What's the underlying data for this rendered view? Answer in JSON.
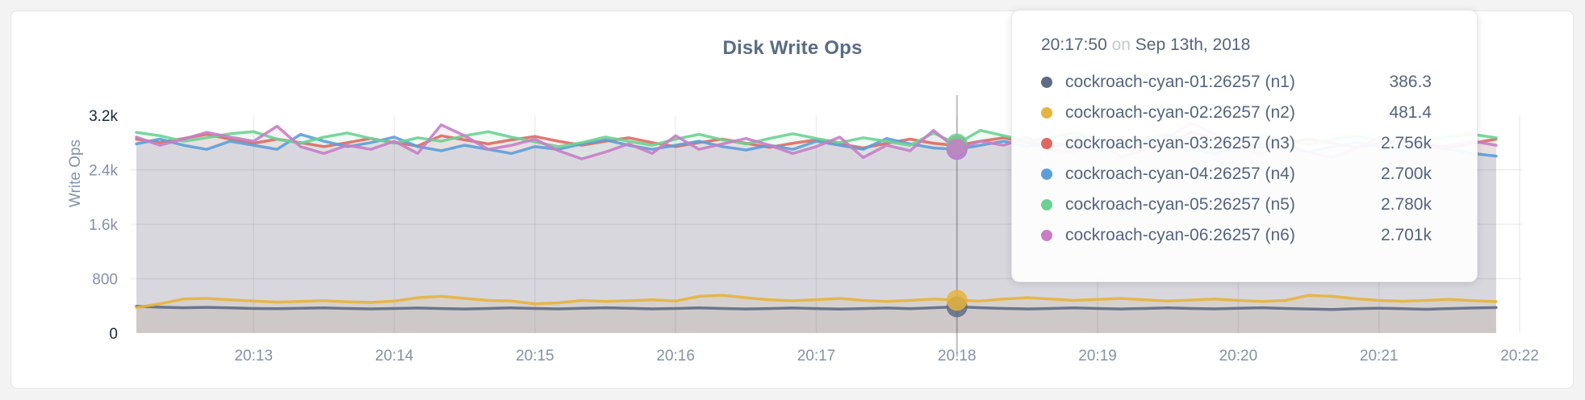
{
  "page": {
    "title": "Disk Write Ops",
    "y_axis_title": "Write Ops"
  },
  "tooltip": {
    "time": "20:17:50",
    "connector": "on",
    "date": "Sep 13th, 2018"
  },
  "chart_data": {
    "type": "line",
    "title": "Disk Write Ops",
    "xlabel": "",
    "ylabel": "Write Ops",
    "ylim": [
      0,
      3200
    ],
    "grid": true,
    "legend_position": "tooltip-overlay",
    "x_start_time": "20:12:10",
    "x_step_seconds": 10,
    "x_domain_seconds": [
      0,
      590
    ],
    "x_ticks": [
      {
        "label": "20:13",
        "t": 50
      },
      {
        "label": "20:14",
        "t": 110
      },
      {
        "label": "20:15",
        "t": 170
      },
      {
        "label": "20:16",
        "t": 230
      },
      {
        "label": "20:17",
        "t": 290
      },
      {
        "label": "20:18",
        "t": 350
      },
      {
        "label": "20:19",
        "t": 410
      },
      {
        "label": "20:20",
        "t": 470
      },
      {
        "label": "20:21",
        "t": 530
      },
      {
        "label": "20:22",
        "t": 590
      }
    ],
    "y_ticks": [
      {
        "label": "0",
        "v": 0,
        "emphasis": true,
        "gridline": false
      },
      {
        "label": "800",
        "v": 800,
        "emphasis": false,
        "gridline": true
      },
      {
        "label": "1.6k",
        "v": 1600,
        "emphasis": false,
        "gridline": true
      },
      {
        "label": "2.4k",
        "v": 2400,
        "emphasis": false,
        "gridline": true
      },
      {
        "label": "3.2k",
        "v": 3200,
        "emphasis": true,
        "gridline": false
      }
    ],
    "hover": {
      "t": 350,
      "index": 35,
      "time": "20:17:50",
      "date": "Sep 13th, 2018"
    },
    "series": [
      {
        "id": "n1",
        "name": "cockroach-cyan-01:26257 (n1)",
        "color": "#5f6c87",
        "fill_opacity": 0.1,
        "hover_value_label": "386.3",
        "values": [
          395,
          380,
          372,
          378,
          370,
          362,
          358,
          364,
          370,
          362,
          356,
          362,
          368,
          360,
          354,
          362,
          370,
          362,
          356,
          364,
          372,
          364,
          356,
          362,
          370,
          362,
          354,
          360,
          368,
          360,
          352,
          360,
          368,
          358,
          372,
          386.3,
          372,
          362,
          354,
          362,
          370,
          362,
          354,
          362,
          370,
          362,
          356,
          364,
          372,
          362,
          354,
          346,
          358,
          366,
          358,
          350,
          360,
          368,
          375
        ]
      },
      {
        "id": "n2",
        "name": "cockroach-cyan-02:26257 (n2)",
        "color": "#e5b43c",
        "fill_opacity": 0.12,
        "hover_value_label": "481.4",
        "values": [
          375,
          430,
          500,
          510,
          490,
          470,
          455,
          465,
          475,
          460,
          450,
          470,
          520,
          540,
          510,
          480,
          470,
          430,
          445,
          480,
          465,
          475,
          490,
          470,
          540,
          555,
          520,
          490,
          475,
          490,
          510,
          480,
          465,
          480,
          500,
          481.4,
          470,
          500,
          520,
          500,
          480,
          495,
          510,
          490,
          470,
          485,
          500,
          480,
          465,
          480,
          555,
          540,
          505,
          480,
          468,
          480,
          495,
          478,
          462
        ]
      },
      {
        "id": "n3",
        "name": "cockroach-cyan-03:26257 (n3)",
        "color": "#dd6a62",
        "fill_opacity": 0.11,
        "hover_value_label": "2.756k",
        "values": [
          2850,
          2800,
          2860,
          2920,
          2850,
          2790,
          2850,
          2800,
          2740,
          2800,
          2860,
          2800,
          2750,
          2900,
          2840,
          2780,
          2840,
          2890,
          2820,
          2760,
          2820,
          2870,
          2800,
          2740,
          2800,
          2850,
          2790,
          2730,
          2790,
          2840,
          2780,
          2720,
          2790,
          2850,
          2790,
          2756,
          2820,
          2870,
          2800,
          2740,
          2800,
          2860,
          2800,
          2740,
          2800,
          2950,
          2860,
          2790,
          2730,
          2790,
          2850,
          2790,
          2730,
          2790,
          2840,
          2780,
          2720,
          2790,
          2850
        ]
      },
      {
        "id": "n4",
        "name": "cockroach-cyan-04:26257 (n4)",
        "color": "#5c9fd8",
        "fill_opacity": 0.11,
        "hover_value_label": "2.700k",
        "values": [
          2780,
          2850,
          2760,
          2700,
          2820,
          2760,
          2700,
          2920,
          2820,
          2740,
          2800,
          2880,
          2740,
          2680,
          2760,
          2700,
          2640,
          2740,
          2700,
          2780,
          2840,
          2760,
          2700,
          2760,
          2820,
          2740,
          2690,
          2760,
          2700,
          2820,
          2760,
          2700,
          2860,
          2780,
          2720,
          2700,
          2760,
          2820,
          2740,
          2800,
          2740,
          2680,
          2760,
          2820,
          2760,
          2700,
          2640,
          2720,
          2780,
          2720,
          2660,
          2740,
          2800,
          2740,
          2680,
          2740,
          2700,
          2640,
          2600
        ]
      },
      {
        "id": "n5",
        "name": "cockroach-cyan-05:26257 (n5)",
        "color": "#6bd193",
        "fill_opacity": 0.11,
        "hover_value_label": "2.780k",
        "values": [
          2950,
          2900,
          2820,
          2870,
          2930,
          2960,
          2850,
          2790,
          2880,
          2940,
          2860,
          2790,
          2870,
          2820,
          2900,
          2960,
          2880,
          2810,
          2740,
          2800,
          2880,
          2820,
          2760,
          2850,
          2920,
          2840,
          2780,
          2860,
          2930,
          2860,
          2800,
          2870,
          2820,
          2760,
          2940,
          2780,
          2980,
          2900,
          2820,
          2880,
          2940,
          2860,
          2790,
          2860,
          2920,
          2850,
          2780,
          2850,
          2910,
          2840,
          2770,
          2840,
          2900,
          2830,
          2760,
          2830,
          2890,
          2920,
          2870
        ]
      },
      {
        "id": "n6",
        "name": "cockroach-cyan-06:26257 (n6)",
        "color": "#c77ec6",
        "fill_opacity": 0.11,
        "hover_value_label": "2.701k",
        "values": [
          2880,
          2760,
          2850,
          2950,
          2880,
          2820,
          3040,
          2740,
          2640,
          2760,
          2700,
          2820,
          2640,
          3060,
          2900,
          2700,
          2760,
          2850,
          2680,
          2560,
          2660,
          2780,
          2640,
          2900,
          2700,
          2780,
          2860,
          2760,
          2640,
          2740,
          2880,
          2580,
          2760,
          2680,
          2980,
          2701,
          2820,
          2760,
          2880,
          2700,
          2640,
          2840,
          2580,
          2700,
          2880,
          3080,
          2920,
          2720,
          2640,
          2780,
          2660,
          2580,
          2700,
          2880,
          2780,
          2700,
          2760,
          2820,
          2760
        ]
      }
    ]
  }
}
